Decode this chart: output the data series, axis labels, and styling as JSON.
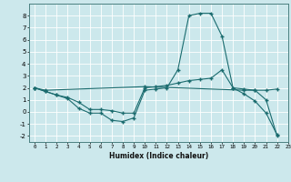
{
  "xlabel": "Humidex (Indice chaleur)",
  "ylabel": "",
  "bg_color": "#cce8ec",
  "grid_color": "#ffffff",
  "line_color": "#1a6b6e",
  "xlim": [
    -0.5,
    23
  ],
  "ylim": [
    -2.5,
    9.0
  ],
  "xticks": [
    0,
    1,
    2,
    3,
    4,
    5,
    6,
    7,
    8,
    9,
    10,
    11,
    12,
    13,
    14,
    15,
    16,
    17,
    18,
    19,
    20,
    21,
    22,
    23
  ],
  "yticks": [
    -2,
    -1,
    0,
    1,
    2,
    3,
    4,
    5,
    6,
    7,
    8
  ],
  "line1_x": [
    0,
    1,
    2,
    3,
    4,
    5,
    6,
    7,
    8,
    9,
    10,
    11,
    12,
    13,
    14,
    15,
    16,
    17,
    18,
    19,
    20,
    21,
    22
  ],
  "line1_y": [
    2.0,
    1.7,
    1.4,
    1.1,
    0.3,
    -0.1,
    -0.1,
    -0.7,
    -0.8,
    -0.5,
    1.8,
    1.9,
    2.0,
    3.5,
    8.0,
    8.2,
    8.2,
    6.3,
    2.0,
    1.5,
    0.9,
    -0.1,
    -1.9
  ],
  "line2_x": [
    0,
    1,
    2,
    3,
    4,
    5,
    6,
    7,
    8,
    9,
    10,
    11,
    12,
    13,
    14,
    15,
    16,
    17,
    18,
    19,
    20,
    21,
    22
  ],
  "line2_y": [
    2.0,
    1.7,
    1.4,
    1.2,
    0.8,
    0.2,
    0.2,
    0.1,
    -0.1,
    -0.1,
    2.0,
    2.1,
    2.2,
    2.4,
    2.6,
    2.7,
    2.8,
    3.5,
    2.0,
    1.9,
    1.8,
    1.8,
    1.9
  ],
  "line3_x": [
    0,
    1,
    10,
    19,
    20,
    21,
    22
  ],
  "line3_y": [
    2.0,
    1.8,
    2.1,
    1.8,
    1.8,
    1.0,
    -2.0
  ]
}
